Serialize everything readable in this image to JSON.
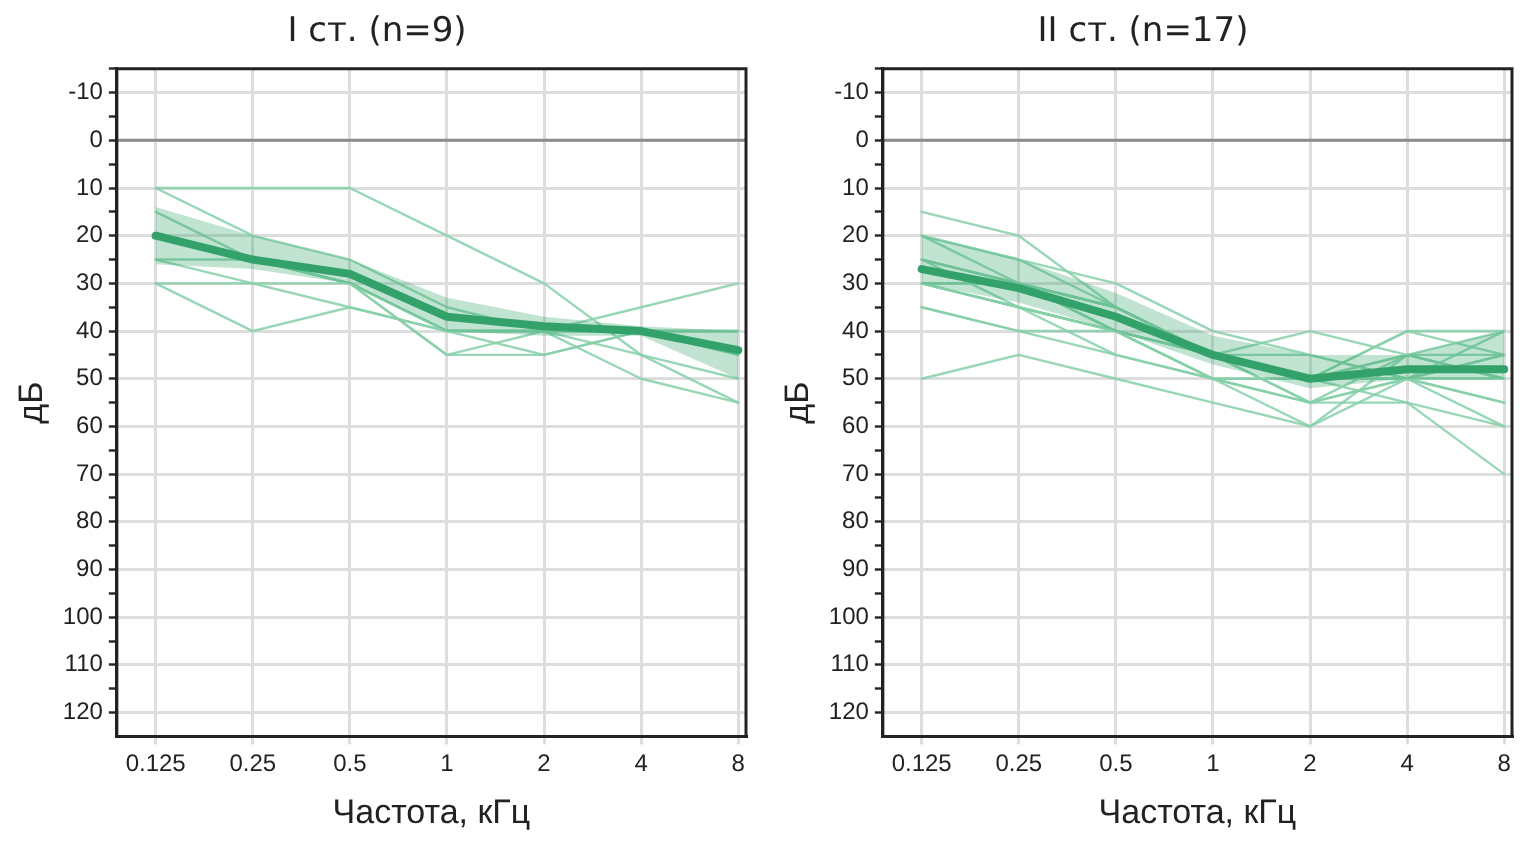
{
  "chart_data": [
    {
      "type": "line",
      "title": "I ст. (n=9)",
      "xlabel": "Частота, кГц",
      "ylabel": "дБ",
      "categories": [
        "0.125",
        "0.25",
        "0.5",
        "1",
        "2",
        "4",
        "8"
      ],
      "ylim": [
        125,
        -15
      ],
      "yticks": [
        {
          "value": -15,
          "label": null
        },
        -10,
        {
          "value": -5,
          "label": null
        },
        0,
        {
          "value": 5,
          "label": null
        },
        10,
        {
          "value": 15,
          "label": null
        },
        20,
        {
          "value": 25,
          "label": null
        },
        30,
        {
          "value": 35,
          "label": null
        },
        40,
        {
          "value": 45,
          "label": null
        },
        50,
        {
          "value": 55,
          "label": null
        },
        60,
        {
          "value": 65,
          "label": null
        },
        70,
        {
          "value": 75,
          "label": null
        },
        80,
        {
          "value": 85,
          "label": null
        },
        90,
        {
          "value": 95,
          "label": null
        },
        100,
        {
          "value": 105,
          "label": null
        },
        110,
        {
          "value": 115,
          "label": null
        },
        120
      ],
      "grid": true,
      "legend": false,
      "marker": "none",
      "line_style": "solid",
      "ref_lines": [
        {
          "axis": "y",
          "value": 0,
          "color": "#8c8c8c"
        }
      ],
      "series": [
        {
          "color": "#86d0a8",
          "values": [
            10,
            10,
            10,
            20,
            30,
            45,
            55
          ]
        },
        {
          "color": "#86d0a8",
          "values": [
            10,
            20,
            25,
            35,
            40,
            40,
            45
          ]
        },
        {
          "color": "#86d0a8",
          "values": [
            15,
            25,
            30,
            40,
            40,
            35,
            30
          ]
        },
        {
          "color": "#86d0a8",
          "values": [
            20,
            25,
            30,
            45,
            45,
            40,
            40
          ]
        },
        {
          "color": "#86d0a8",
          "values": [
            25,
            30,
            30,
            40,
            45,
            40,
            40
          ]
        },
        {
          "color": "#86d0a8",
          "values": [
            30,
            40,
            35,
            40,
            40,
            45,
            50
          ]
        },
        {
          "color": "#86d0a8",
          "values": [
            25,
            25,
            30,
            45,
            40,
            40,
            45
          ]
        },
        {
          "color": "#86d0a8",
          "values": [
            20,
            25,
            30,
            40,
            40,
            50,
            55
          ]
        },
        {
          "color": "#86d0a8",
          "values": [
            30,
            30,
            35,
            40,
            40,
            40,
            40
          ]
        },
        {
          "color": "#33a16a",
          "values": [
            20,
            25,
            28,
            37,
            39,
            40,
            44
          ],
          "lower": [
            26,
            27,
            30,
            40,
            41,
            41,
            50
          ],
          "upper": [
            14,
            20,
            25,
            33,
            37,
            39,
            40
          ]
        }
      ]
    },
    {
      "type": "line",
      "title": "II ст. (n=17)",
      "xlabel": "Частота, кГц",
      "ylabel": "дБ",
      "categories": [
        "0.125",
        "0.25",
        "0.5",
        "1",
        "2",
        "4",
        "8"
      ],
      "ylim": [
        125,
        -15
      ],
      "yticks": [
        {
          "value": -15,
          "label": null
        },
        -10,
        {
          "value": -5,
          "label": null
        },
        0,
        {
          "value": 5,
          "label": null
        },
        10,
        {
          "value": 15,
          "label": null
        },
        20,
        {
          "value": 25,
          "label": null
        },
        30,
        {
          "value": 35,
          "label": null
        },
        40,
        {
          "value": 45,
          "label": null
        },
        50,
        {
          "value": 55,
          "label": null
        },
        60,
        {
          "value": 65,
          "label": null
        },
        70,
        {
          "value": 75,
          "label": null
        },
        80,
        {
          "value": 85,
          "label": null
        },
        90,
        {
          "value": 95,
          "label": null
        },
        100,
        {
          "value": 105,
          "label": null
        },
        110,
        {
          "value": 115,
          "label": null
        },
        120
      ],
      "grid": true,
      "legend": false,
      "marker": "none",
      "line_style": "solid",
      "ref_lines": [
        {
          "axis": "y",
          "value": 0,
          "color": "#8c8c8c"
        }
      ],
      "series": [
        {
          "color": "#86d0a8",
          "values": [
            15,
            20,
            35,
            45,
            50,
            50,
            55
          ]
        },
        {
          "color": "#86d0a8",
          "values": [
            20,
            25,
            30,
            40,
            45,
            50,
            45
          ]
        },
        {
          "color": "#86d0a8",
          "values": [
            20,
            25,
            35,
            45,
            55,
            45,
            40
          ]
        },
        {
          "color": "#86d0a8",
          "values": [
            20,
            30,
            35,
            45,
            50,
            40,
            45
          ]
        },
        {
          "color": "#86d0a8",
          "values": [
            25,
            30,
            35,
            45,
            50,
            45,
            50
          ]
        },
        {
          "color": "#86d0a8",
          "values": [
            25,
            30,
            40,
            45,
            55,
            50,
            60
          ]
        },
        {
          "color": "#86d0a8",
          "values": [
            30,
            30,
            35,
            45,
            40,
            45,
            50
          ]
        },
        {
          "color": "#86d0a8",
          "values": [
            30,
            35,
            40,
            50,
            60,
            50,
            55
          ]
        },
        {
          "color": "#86d0a8",
          "values": [
            30,
            35,
            40,
            45,
            50,
            50,
            45
          ]
        },
        {
          "color": "#86d0a8",
          "values": [
            35,
            40,
            40,
            50,
            50,
            40,
            40
          ]
        },
        {
          "color": "#86d0a8",
          "values": [
            35,
            40,
            45,
            50,
            55,
            55,
            70
          ]
        },
        {
          "color": "#86d0a8",
          "values": [
            50,
            45,
            50,
            55,
            60,
            45,
            50
          ]
        },
        {
          "color": "#86d0a8",
          "values": [
            25,
            30,
            35,
            45,
            50,
            55,
            60
          ]
        },
        {
          "color": "#86d0a8",
          "values": [
            30,
            35,
            40,
            50,
            50,
            50,
            50
          ]
        },
        {
          "color": "#86d0a8",
          "values": [
            30,
            30,
            40,
            45,
            50,
            45,
            45
          ]
        },
        {
          "color": "#86d0a8",
          "values": [
            25,
            35,
            40,
            45,
            45,
            50,
            40
          ]
        },
        {
          "color": "#86d0a8",
          "values": [
            30,
            35,
            45,
            50,
            55,
            50,
            50
          ]
        },
        {
          "color": "#33a16a",
          "values": [
            27,
            31,
            37,
            45,
            50,
            48,
            48
          ],
          "lower": [
            30,
            34,
            40,
            47,
            52,
            50,
            50
          ],
          "upper": [
            20,
            25,
            32,
            41,
            45,
            45,
            40
          ]
        }
      ]
    }
  ]
}
